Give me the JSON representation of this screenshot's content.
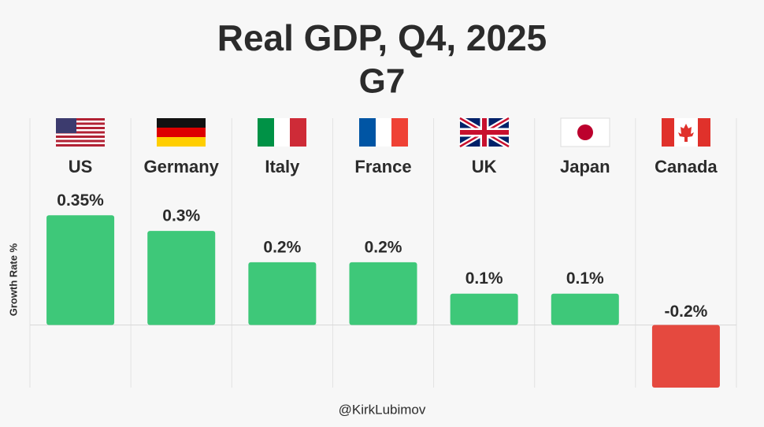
{
  "chart_data": {
    "type": "bar",
    "title": "Real GDP, Q4, 2025",
    "subtitle": "G7",
    "y_label": "Growth Rate %",
    "source": "@KirkLubimov",
    "categories": [
      "US",
      "Germany",
      "Italy",
      "France",
      "UK",
      "Japan",
      "Canada"
    ],
    "values": [
      0.35,
      0.3,
      0.2,
      0.2,
      0.1,
      0.1,
      -0.2
    ],
    "value_labels": [
      "0.35%",
      "0.3%",
      "0.2%",
      "0.2%",
      "0.1%",
      "0.1%",
      "-0.2%"
    ],
    "colors": [
      "#3ec879",
      "#3ec879",
      "#3ec879",
      "#3ec879",
      "#3ec879",
      "#3ec879",
      "#e5493f"
    ],
    "ylim": [
      -0.2,
      0.66
    ]
  }
}
